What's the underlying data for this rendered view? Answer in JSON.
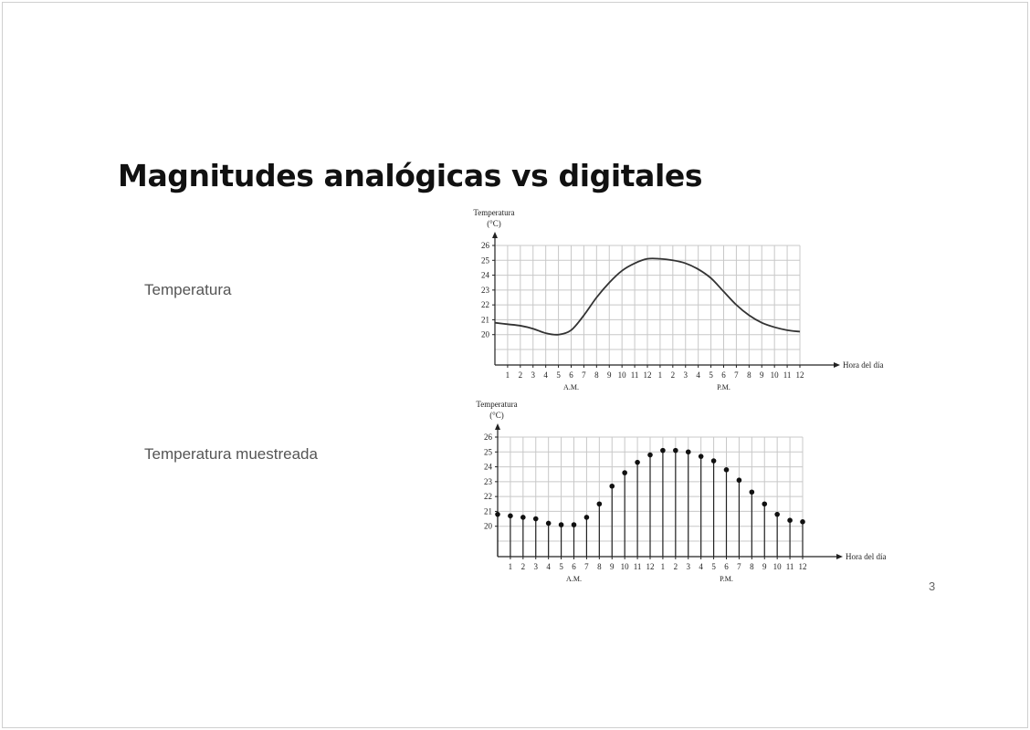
{
  "slide": {
    "title": "Magnitudes analógicas vs digitales",
    "label_analog": "Temperatura",
    "label_sampled": "Temperatura muestreada",
    "page_number": "3"
  },
  "chart_data": [
    {
      "type": "line",
      "title": "",
      "ylabel_line1": "Temperatura",
      "ylabel_line2": "(°C)",
      "xlabel": "Hora del día",
      "period_labels": [
        "A.M.",
        "P.M."
      ],
      "x_ticks": [
        "1",
        "2",
        "3",
        "4",
        "5",
        "6",
        "7",
        "8",
        "9",
        "10",
        "11",
        "12",
        "1",
        "2",
        "3",
        "4",
        "5",
        "6",
        "7",
        "8",
        "9",
        "10",
        "11",
        "12"
      ],
      "y_ticks": [
        "20",
        "21",
        "22",
        "23",
        "24",
        "25",
        "26"
      ],
      "ylim": [
        19,
        26
      ],
      "x": [
        0,
        1,
        2,
        3,
        4,
        5,
        6,
        7,
        8,
        9,
        10,
        11,
        12,
        13,
        14,
        15,
        16,
        17,
        18,
        19,
        20,
        21,
        22,
        23,
        24
      ],
      "values": [
        20.8,
        20.7,
        20.6,
        20.4,
        20.1,
        20.0,
        20.3,
        21.3,
        22.5,
        23.5,
        24.3,
        24.8,
        25.1,
        25.1,
        25.0,
        24.8,
        24.4,
        23.8,
        22.9,
        22.0,
        21.3,
        20.8,
        20.5,
        20.3,
        20.2
      ],
      "grid": true
    },
    {
      "type": "scatter",
      "style": "stem",
      "title": "",
      "ylabel_line1": "Temperatura",
      "ylabel_line2": "(°C)",
      "xlabel": "Hora del día",
      "period_labels": [
        "A.M.",
        "P.M."
      ],
      "x_ticks": [
        "1",
        "2",
        "3",
        "4",
        "5",
        "6",
        "7",
        "8",
        "9",
        "10",
        "11",
        "12",
        "1",
        "2",
        "3",
        "4",
        "5",
        "6",
        "7",
        "8",
        "9",
        "10",
        "11",
        "12"
      ],
      "y_ticks": [
        "20",
        "21",
        "22",
        "23",
        "24",
        "25",
        "26"
      ],
      "ylim": [
        19,
        26
      ],
      "x": [
        0,
        1,
        2,
        3,
        4,
        5,
        6,
        7,
        8,
        9,
        10,
        11,
        12,
        13,
        14,
        15,
        16,
        17,
        18,
        19,
        20,
        21,
        22,
        23,
        24
      ],
      "values": [
        20.8,
        20.7,
        20.6,
        20.5,
        20.2,
        20.1,
        20.1,
        20.6,
        21.5,
        22.7,
        23.6,
        24.3,
        24.8,
        25.1,
        25.1,
        25.0,
        24.7,
        24.4,
        23.8,
        23.1,
        22.3,
        21.5,
        20.8,
        20.4,
        20.3
      ],
      "grid": true
    }
  ]
}
